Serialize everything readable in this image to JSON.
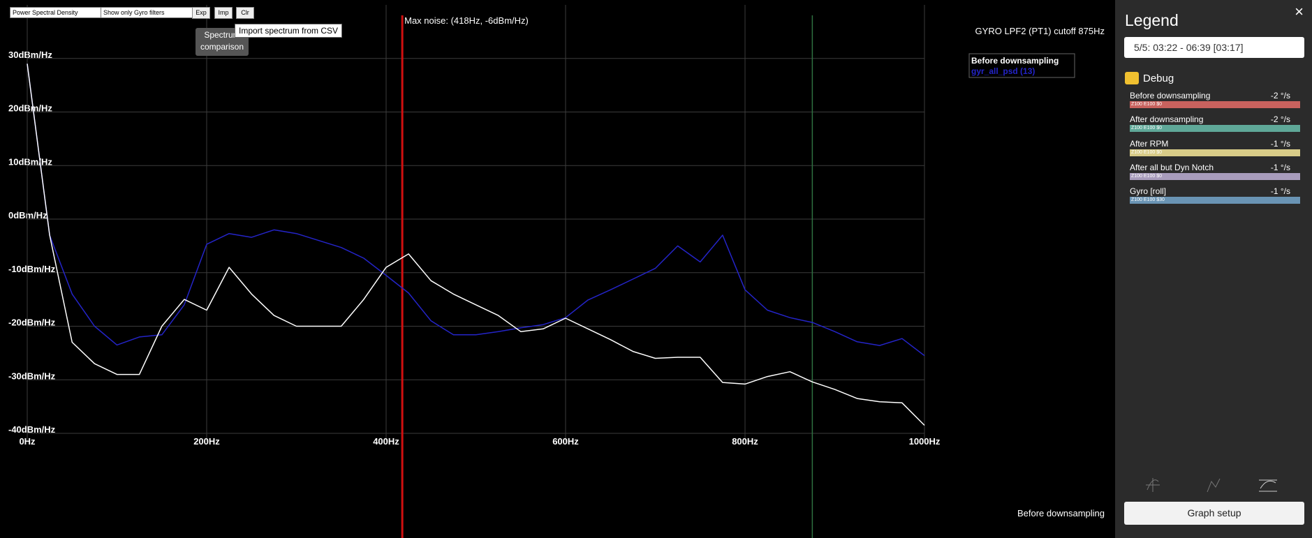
{
  "chart_data": {
    "type": "line",
    "x": [
      0,
      25,
      50,
      75,
      100,
      125,
      150,
      175,
      200,
      225,
      250,
      275,
      300,
      325,
      350,
      375,
      400,
      425,
      450,
      475,
      500,
      525,
      550,
      575,
      600,
      625,
      650,
      675,
      700,
      725,
      750,
      775,
      800,
      825,
      850,
      875,
      900,
      925,
      950,
      975,
      1000
    ],
    "series": [
      {
        "name": "Before downsampling",
        "color": "#ffffff",
        "values": [
          29,
          -3,
          -23,
          -27,
          -29,
          -29,
          -20,
          -15,
          -17,
          -9,
          -14,
          -18,
          -20,
          -20,
          -20,
          -15,
          -9,
          -6.5,
          -11.5,
          -14,
          -16,
          -18,
          -21,
          -20.5,
          -18.5,
          -20.5,
          -22.5,
          -24.7,
          -26,
          -25.8,
          -25.8,
          -30.5,
          -30.8,
          -29.4,
          -28.5,
          -30.4,
          -31.8,
          -33.5,
          -34.1,
          -34.3,
          -38.5
        ]
      },
      {
        "name": "gyr_all_psd (13)",
        "color": "#2424c8",
        "values": [
          29,
          -3,
          -14,
          -20,
          -23.5,
          -22,
          -21.6,
          -16,
          -4.7,
          -2.7,
          -3.4,
          -2,
          -2.7,
          -4,
          -5.3,
          -7.3,
          -10.5,
          -13.8,
          -19,
          -21.6,
          -21.6,
          -21,
          -20.3,
          -19.7,
          -18.4,
          -15.1,
          -13.2,
          -11.2,
          -9.2,
          -5,
          -8,
          -3,
          -13.2,
          -17,
          -18.4,
          -19.3,
          -21,
          -22.9,
          -23.6,
          -22.3,
          -25.5
        ]
      }
    ],
    "xlim": [
      0,
      1000
    ],
    "xticks": [
      {
        "value": 0,
        "label": "0Hz"
      },
      {
        "value": 200,
        "label": "200Hz"
      },
      {
        "value": 400,
        "label": "400Hz"
      },
      {
        "value": 600,
        "label": "600Hz"
      },
      {
        "value": 800,
        "label": "800Hz"
      },
      {
        "value": 1000,
        "label": "1000Hz"
      }
    ],
    "ylim": [
      -40,
      40
    ],
    "yticks": [
      {
        "value": -40,
        "label": "-40dBm/Hz"
      },
      {
        "value": -30,
        "label": "-30dBm/Hz"
      },
      {
        "value": -20,
        "label": "-20dBm/Hz"
      },
      {
        "value": -10,
        "label": "-10dBm/Hz"
      },
      {
        "value": 0,
        "label": "0dBm/Hz"
      },
      {
        "value": 10,
        "label": "10dBm/Hz"
      },
      {
        "value": 20,
        "label": "20dBm/Hz"
      },
      {
        "value": 30,
        "label": "30dBm/Hz"
      }
    ],
    "grid": true,
    "max_noise": {
      "text": "Max noise: (418Hz, -6dBm/Hz)",
      "x": 418,
      "color": "#d01010"
    },
    "cutoff": {
      "text": "GYRO LPF2 (PT1) cutoff 875Hz",
      "x": 875,
      "color": "#2e7040"
    }
  },
  "toolbar": {
    "analyser_select": "Power Spectral Density",
    "filter_select": "Show only Gyro filters",
    "buttons": [
      "Exp",
      "Imp",
      "Clr"
    ],
    "tooltip": "Import spectrum from CSV",
    "hint": "Spectrum comparison"
  },
  "legend_panel": {
    "title": "Legend",
    "close": "×",
    "log_select": "5/5: 03:22 - 06:39 [03:17]",
    "group": "Debug",
    "items": [
      {
        "name": "Before downsampling",
        "value": "-2 °/s",
        "info": "Z100 E100 $0",
        "color": "#c8625e"
      },
      {
        "name": "After downsampling",
        "value": "-2 °/s",
        "info": "Z100 E100 $0",
        "color": "#5fa898"
      },
      {
        "name": "After RPM",
        "value": "-1 °/s",
        "info": "Z100 E100 $0",
        "color": "#d8cc88"
      },
      {
        "name": "After all but Dyn Notch",
        "value": "-1 °/s",
        "info": "Z100 E100 $0",
        "color": "#a89cbc"
      },
      {
        "name": "Gyro [roll]",
        "value": "-1 °/s",
        "info": "Z100 E100 $30",
        "color": "#6a94b4"
      }
    ],
    "button": "Graph setup"
  }
}
